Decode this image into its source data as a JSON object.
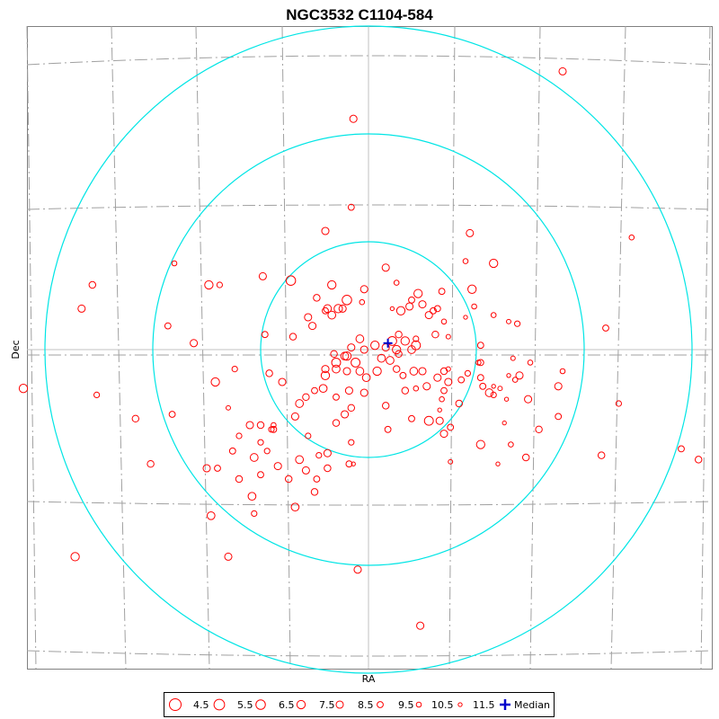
{
  "chart_data": {
    "type": "scatter",
    "title": "NGC3532  C1104-584",
    "xlabel": "RA",
    "ylabel": "Dec",
    "legend": {
      "placement": "bottom-center",
      "magnitudes": [
        "4.5",
        "5.5",
        "6.5",
        "7.5",
        "8.5",
        "9.5",
        "10.5",
        "11.5"
      ],
      "median_label": "Median"
    },
    "colors": {
      "stars": "#ff0000",
      "rings": "#00e5e5",
      "median": "#0000cc",
      "grid": "#a0a0a0",
      "axes": "#c0c0c0",
      "frame": "#808080"
    },
    "median": [
      0.9,
      0.3
    ],
    "rings_radius": [
      5,
      10,
      15
    ],
    "stars": [
      [
        9.0,
        12.9,
        8.5
      ],
      [
        -0.7,
        10.7,
        8.5
      ],
      [
        -0.8,
        6.6,
        9.5
      ],
      [
        4.7,
        5.4,
        8.5
      ],
      [
        12.2,
        5.2,
        10.5
      ],
      [
        -2.0,
        5.5,
        8.5
      ],
      [
        -9.0,
        4.0,
        10.5
      ],
      [
        5.8,
        4.0,
        7.5
      ],
      [
        4.5,
        4.1,
        10.5
      ],
      [
        -4.9,
        3.4,
        8.5
      ],
      [
        -7.4,
        3.0,
        7.5
      ],
      [
        -3.6,
        3.2,
        6.5
      ],
      [
        -1.7,
        3.0,
        7.5
      ],
      [
        -0.2,
        2.8,
        8.5
      ],
      [
        0.8,
        3.8,
        8.5
      ],
      [
        1.3,
        3.1,
        10.5
      ],
      [
        2.3,
        2.6,
        7.5
      ],
      [
        2.0,
        2.3,
        9.5
      ],
      [
        -1.0,
        2.3,
        6.5
      ],
      [
        -2.4,
        2.4,
        9.0
      ],
      [
        -1.9,
        1.9,
        8.0
      ],
      [
        -1.2,
        1.9,
        8.5
      ],
      [
        -0.3,
        2.2,
        10.5
      ],
      [
        1.1,
        1.9,
        11.5
      ],
      [
        1.9,
        2.0,
        8.5
      ],
      [
        2.5,
        2.1,
        8.5
      ],
      [
        3.4,
        2.7,
        9.5
      ],
      [
        3.2,
        1.9,
        9.5
      ],
      [
        4.8,
        2.8,
        7.5
      ],
      [
        4.9,
        2.0,
        10.5
      ],
      [
        -1.4,
        1.9,
        7.5
      ],
      [
        -2.0,
        1.8,
        9.5
      ],
      [
        -1.7,
        1.6,
        8.0
      ],
      [
        -2.8,
        1.5,
        8.5
      ],
      [
        1.5,
        1.8,
        7.5
      ],
      [
        2.8,
        1.6,
        8.5
      ],
      [
        3.0,
        1.8,
        9.5
      ],
      [
        3.5,
        1.3,
        10.5
      ],
      [
        4.5,
        1.5,
        11.5
      ],
      [
        5.8,
        1.6,
        10.5
      ],
      [
        6.5,
        1.3,
        11.0
      ],
      [
        5.2,
        0.2,
        9.5
      ],
      [
        -2.6,
        1.1,
        8.5
      ],
      [
        -4.8,
        0.7,
        9.5
      ],
      [
        -3.5,
        0.6,
        9.0
      ],
      [
        -0.4,
        0.5,
        8.0
      ],
      [
        1.4,
        0.7,
        9.0
      ],
      [
        2.2,
        0.5,
        10.0
      ],
      [
        3.1,
        0.7,
        9.0
      ],
      [
        3.7,
        0.6,
        11.0
      ],
      [
        -0.2,
        0.0,
        8.5
      ],
      [
        0.3,
        0.2,
        7.5
      ],
      [
        0.8,
        0.1,
        8.5
      ],
      [
        1.1,
        0.4,
        7.0
      ],
      [
        1.3,
        0.0,
        7.5
      ],
      [
        1.7,
        0.4,
        7.5
      ],
      [
        2.0,
        0.0,
        8.0
      ],
      [
        2.2,
        0.2,
        7.0
      ],
      [
        1.4,
        -0.2,
        9.0
      ],
      [
        0.6,
        -0.4,
        8.0
      ],
      [
        -0.8,
        0.1,
        8.5
      ],
      [
        -1.1,
        -0.3,
        8.0
      ],
      [
        -1.6,
        -0.2,
        9.0
      ],
      [
        -0.6,
        -0.6,
        7.0
      ],
      [
        -1.5,
        -0.6,
        7.0
      ],
      [
        -1.0,
        -0.3,
        7.5
      ],
      [
        -0.4,
        -1.0,
        8.0
      ],
      [
        -1.0,
        -1.0,
        8.5
      ],
      [
        -1.5,
        -0.9,
        8.0
      ],
      [
        -2.0,
        -0.9,
        8.5
      ],
      [
        0.4,
        -1.0,
        7.5
      ],
      [
        1.0,
        -0.5,
        8.0
      ],
      [
        1.3,
        -0.9,
        9.0
      ],
      [
        1.6,
        -1.2,
        9.5
      ],
      [
        2.1,
        -1.0,
        8.0
      ],
      [
        2.5,
        -1.0,
        8.5
      ],
      [
        3.5,
        -1.0,
        9.0
      ],
      [
        3.2,
        -1.3,
        8.5
      ],
      [
        2.7,
        -1.7,
        8.5
      ],
      [
        -0.1,
        -1.3,
        8.0
      ],
      [
        -2.0,
        -1.2,
        7.5
      ],
      [
        -2.1,
        -1.8,
        8.0
      ],
      [
        -0.9,
        -1.9,
        8.5
      ],
      [
        1.7,
        -1.9,
        9.0
      ],
      [
        2.2,
        -1.8,
        10.5
      ],
      [
        3.7,
        -1.5,
        8.5
      ],
      [
        3.5,
        -1.9,
        9.5
      ],
      [
        4.6,
        -1.1,
        10.0
      ],
      [
        4.3,
        -1.4,
        9.5
      ],
      [
        5.2,
        -1.3,
        9.5
      ],
      [
        6.5,
        -1.2,
        11.5
      ],
      [
        6.8,
        -1.4,
        10.5
      ],
      [
        7.0,
        -1.2,
        8.5
      ],
      [
        5.2,
        -0.6,
        9.5
      ],
      [
        3.7,
        -0.9,
        11.0
      ],
      [
        -4.6,
        -1.1,
        9.0
      ],
      [
        -4.0,
        -1.5,
        8.5
      ],
      [
        -2.5,
        -1.9,
        9.5
      ],
      [
        -1.5,
        -2.2,
        9.5
      ],
      [
        -0.2,
        -2.0,
        8.5
      ],
      [
        -3.2,
        -2.5,
        8.0
      ],
      [
        -2.9,
        -2.2,
        9.0
      ],
      [
        -1.1,
        -3.0,
        8.5
      ],
      [
        0.8,
        -2.6,
        9.0
      ],
      [
        3.3,
        -2.8,
        11.5
      ],
      [
        2.8,
        -3.3,
        7.0
      ],
      [
        3.4,
        -2.3,
        10.5
      ],
      [
        5.3,
        -1.7,
        9.5
      ],
      [
        5.8,
        -2.1,
        10.0
      ],
      [
        6.1,
        -1.8,
        11.0
      ],
      [
        6.4,
        -2.3,
        11.5
      ],
      [
        5.6,
        -2.0,
        8.0
      ],
      [
        -3.4,
        -3.1,
        8.5
      ],
      [
        -2.8,
        -4.0,
        10.0
      ],
      [
        -0.8,
        -2.7,
        9.0
      ],
      [
        -1.5,
        -3.4,
        9.0
      ],
      [
        -0.8,
        -4.3,
        10.0
      ],
      [
        0.9,
        -3.7,
        9.5
      ],
      [
        2.0,
        -3.2,
        9.5
      ],
      [
        3.3,
        -3.3,
        8.5
      ],
      [
        3.8,
        -3.6,
        9.5
      ],
      [
        4.2,
        -2.5,
        9.0
      ],
      [
        5.8,
        -1.7,
        11.5
      ],
      [
        -1.9,
        -4.8,
        8.5
      ],
      [
        -5.0,
        -3.5,
        9.0
      ],
      [
        -4.4,
        -3.5,
        10.5
      ],
      [
        -4.5,
        -3.7,
        10.0
      ],
      [
        -2.9,
        -5.6,
        8.5
      ],
      [
        -0.9,
        -5.3,
        9.5
      ],
      [
        -0.7,
        -5.3,
        11.5
      ],
      [
        -5.3,
        -5.0,
        8.0
      ],
      [
        -3.2,
        -5.1,
        8.0
      ],
      [
        -2.3,
        -4.9,
        10.0
      ],
      [
        -1.9,
        -5.5,
        9.0
      ],
      [
        3.8,
        -5.2,
        11.0
      ],
      [
        -3.7,
        -6.0,
        9.0
      ],
      [
        -2.4,
        -6.0,
        9.5
      ],
      [
        -7.0,
        -5.5,
        9.5
      ],
      [
        -5.0,
        -5.8,
        9.5
      ],
      [
        -6.5,
        -2.7,
        11.0
      ],
      [
        -7.1,
        -1.5,
        7.5
      ],
      [
        -6.2,
        -0.9,
        10.0
      ],
      [
        -6.0,
        -4.0,
        10.0
      ],
      [
        -7.5,
        -5.5,
        8.5
      ],
      [
        -4.4,
        -3.7,
        9.5
      ],
      [
        -6.3,
        -4.7,
        9.5
      ],
      [
        -5.5,
        -3.5,
        8.5
      ],
      [
        -4.7,
        -4.7,
        10.0
      ],
      [
        -5.0,
        -4.3,
        10.0
      ],
      [
        -2.5,
        -6.6,
        9.0
      ],
      [
        -7.3,
        -7.7,
        8.0
      ],
      [
        -5.3,
        -7.6,
        10.0
      ],
      [
        -3.4,
        -7.3,
        8.0
      ],
      [
        3.5,
        -3.9,
        8.5
      ],
      [
        5.2,
        -4.4,
        7.5
      ],
      [
        8.8,
        -1.7,
        8.5
      ],
      [
        8.8,
        -3.1,
        9.5
      ],
      [
        6.3,
        -3.4,
        11.5
      ],
      [
        7.9,
        -3.7,
        9.0
      ],
      [
        6.0,
        -5.3,
        11.5
      ],
      [
        -6.9,
        3.0,
        10.0
      ],
      [
        -9.3,
        1.1,
        9.5
      ],
      [
        -13.3,
        1.9,
        8.5
      ],
      [
        -16.0,
        -1.8,
        7.5
      ],
      [
        -13.6,
        -9.6,
        7.5
      ],
      [
        -12.8,
        3.0,
        9.0
      ],
      [
        -12.6,
        -2.1,
        10.0
      ],
      [
        -10.1,
        -5.3,
        9.0
      ],
      [
        -9.1,
        -3.0,
        9.5
      ],
      [
        -8.1,
        0.3,
        8.5
      ],
      [
        -10.8,
        -3.2,
        9.0
      ],
      [
        -6.0,
        -6.0,
        9.0
      ],
      [
        -0.5,
        -10.2,
        8.5
      ],
      [
        2.4,
        -12.8,
        8.5
      ],
      [
        -6.5,
        -9.6,
        8.5
      ],
      [
        -5.4,
        -6.8,
        8.0
      ],
      [
        -4.2,
        -5.4,
        8.5
      ],
      [
        11.0,
        1.0,
        9.5
      ],
      [
        11.6,
        -2.5,
        10.0
      ],
      [
        14.5,
        -4.6,
        9.5
      ],
      [
        15.3,
        -5.1,
        9.0
      ],
      [
        10.8,
        -4.9,
        9.0
      ],
      [
        6.6,
        -4.4,
        10.5
      ],
      [
        7.3,
        -5.0,
        9.0
      ],
      [
        5.1,
        -0.6,
        10.5
      ],
      [
        9.0,
        -1.0,
        10.5
      ],
      [
        6.7,
        -0.4,
        11.0
      ],
      [
        6.9,
        1.2,
        10.0
      ],
      [
        7.5,
        -0.6,
        10.5
      ],
      [
        7.4,
        -2.3,
        8.5
      ]
    ]
  }
}
